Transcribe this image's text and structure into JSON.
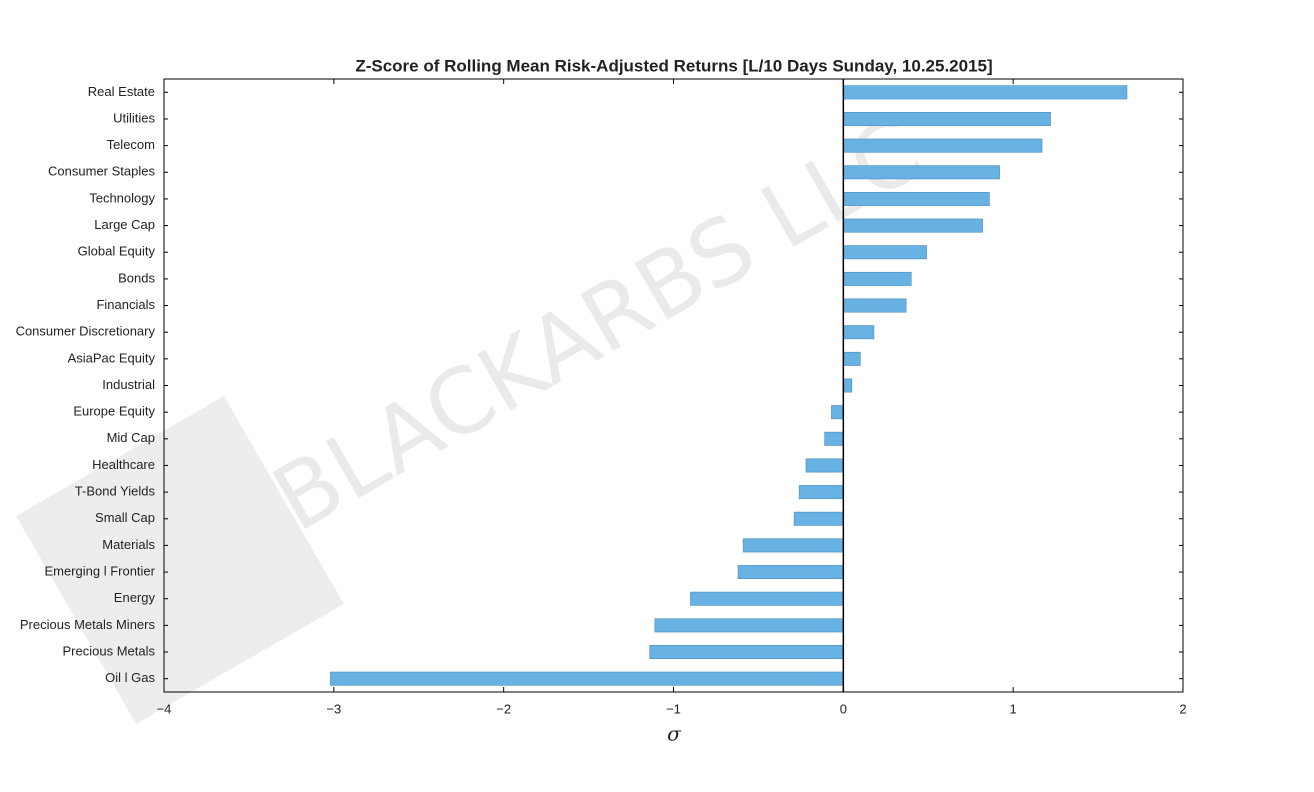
{
  "chart_data": {
    "type": "barh",
    "title": "Z-Score of Rolling Mean Risk-Adjusted Returns [L/10 Days Sunday, 10.25.2015]",
    "xlabel": "σ",
    "watermark": "BLACKARBS LLC",
    "categories": [
      "Real Estate",
      "Utilities",
      "Telecom",
      "Consumer Staples",
      "Technology",
      "Large Cap",
      "Global Equity",
      "Bonds",
      "Financials",
      "Consumer Discretionary",
      "AsiaPac Equity",
      "Industrial",
      "Europe Equity",
      "Mid Cap",
      "Healthcare",
      "T-Bond Yields",
      "Small Cap",
      "Materials",
      "Emerging l Frontier",
      "Energy",
      "Precious Metals Miners",
      "Precious Metals",
      "Oil l Gas"
    ],
    "values": [
      1.67,
      1.22,
      1.17,
      0.92,
      0.86,
      0.82,
      0.49,
      0.4,
      0.37,
      0.18,
      0.1,
      0.05,
      -0.07,
      -0.11,
      -0.22,
      -0.26,
      -0.29,
      -0.59,
      -0.62,
      -0.9,
      -1.11,
      -1.14,
      -3.02
    ],
    "color": "#67b1e3",
    "xlim": [
      -4,
      2
    ],
    "xticks": [
      {
        "value": -4,
        "label": "−4"
      },
      {
        "value": -3,
        "label": "−3"
      },
      {
        "value": -2,
        "label": "−2"
      },
      {
        "value": -1,
        "label": "−1"
      },
      0,
      1,
      2
    ],
    "grid": false
  }
}
